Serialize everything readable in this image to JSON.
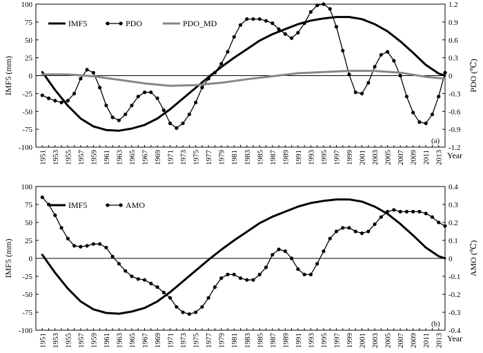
{
  "chart_data": [
    {
      "type": "line",
      "panel_label": "(a)",
      "xlabel": "Year",
      "ylabel": "IMF5 (mm)",
      "y2label": "PDO (℃)",
      "xlim": [
        1950,
        2014
      ],
      "ylim": [
        -100,
        100
      ],
      "y2lim": [
        -1.2,
        1.2
      ],
      "xticks": [
        "1951",
        "1953",
        "1955",
        "1957",
        "1959",
        "1961",
        "1963",
        "1965",
        "1967",
        "1969",
        "1971",
        "1973",
        "1975",
        "1977",
        "1979",
        "1981",
        "1983",
        "1985",
        "1987",
        "1989",
        "1991",
        "1993",
        "1995",
        "1997",
        "1999",
        "2001",
        "2003",
        "2005",
        "2007",
        "2009",
        "2011",
        "2013"
      ],
      "yticks": [
        "-100",
        "-75",
        "-50",
        "-25",
        "0",
        "25",
        "50",
        "75",
        "100"
      ],
      "y2ticks": [
        "-1.2",
        "-0.9",
        "-0.6",
        "-0.3",
        "0",
        "0.3",
        "0.6",
        "0.9",
        "1.2"
      ],
      "legend_position": "top-left",
      "grid": false,
      "series": [
        {
          "name": "IMF5",
          "axis": "left",
          "style": "thick-line",
          "color": "#000000",
          "x": [
            1951,
            1953,
            1955,
            1957,
            1959,
            1961,
            1963,
            1965,
            1967,
            1969,
            1971,
            1973,
            1975,
            1977,
            1979,
            1981,
            1983,
            1985,
            1987,
            1989,
            1991,
            1993,
            1995,
            1997,
            1999,
            2001,
            2003,
            2005,
            2007,
            2009,
            2011,
            2013,
            2014
          ],
          "values": [
            5,
            -20,
            -42,
            -60,
            -71,
            -76,
            -77,
            -74,
            -69,
            -60,
            -47,
            -32,
            -17,
            -2,
            12,
            25,
            37,
            49,
            58,
            65,
            72,
            77,
            80,
            82,
            82,
            79,
            72,
            62,
            48,
            32,
            15,
            3,
            0
          ]
        },
        {
          "name": "PDO",
          "axis": "right",
          "style": "line-markers",
          "color": "#000000",
          "x": [
            1951,
            1952,
            1953,
            1954,
            1955,
            1956,
            1957,
            1958,
            1959,
            1960,
            1961,
            1962,
            1963,
            1964,
            1965,
            1966,
            1967,
            1968,
            1969,
            1970,
            1971,
            1972,
            1973,
            1974,
            1975,
            1976,
            1977,
            1978,
            1979,
            1980,
            1981,
            1982,
            1983,
            1984,
            1985,
            1986,
            1987,
            1988,
            1989,
            1990,
            1991,
            1992,
            1993,
            1994,
            1995,
            1996,
            1997,
            1998,
            1999,
            2000,
            2001,
            2002,
            2003,
            2004,
            2005,
            2006,
            2007,
            2008,
            2009,
            2010,
            2011,
            2012,
            2013,
            2014
          ],
          "values": [
            -0.33,
            -0.38,
            -0.42,
            -0.45,
            -0.42,
            -0.3,
            -0.05,
            0.1,
            0.05,
            -0.2,
            -0.5,
            -0.7,
            -0.75,
            -0.65,
            -0.5,
            -0.35,
            -0.28,
            -0.28,
            -0.38,
            -0.58,
            -0.8,
            -0.88,
            -0.8,
            -0.65,
            -0.45,
            -0.2,
            -0.05,
            0.05,
            0.2,
            0.4,
            0.65,
            0.85,
            0.95,
            0.95,
            0.95,
            0.92,
            0.88,
            0.78,
            0.7,
            0.63,
            0.72,
            0.88,
            1.07,
            1.18,
            1.2,
            1.12,
            0.82,
            0.42,
            0.02,
            -0.28,
            -0.3,
            -0.12,
            0.15,
            0.35,
            0.4,
            0.25,
            0.0,
            -0.35,
            -0.62,
            -0.78,
            -0.8,
            -0.65,
            -0.35,
            0.05
          ]
        },
        {
          "name": "PDO_MD",
          "axis": "right",
          "style": "thick-line",
          "color": "#8c8484",
          "x": [
            1951,
            1955,
            1959,
            1963,
            1967,
            1971,
            1975,
            1979,
            1983,
            1987,
            1991,
            1995,
            1999,
            2003,
            2007,
            2011,
            2014
          ],
          "values": [
            0.02,
            0.02,
            -0.01,
            -0.07,
            -0.13,
            -0.17,
            -0.16,
            -0.12,
            -0.06,
            -0.01,
            0.04,
            0.06,
            0.08,
            0.08,
            0.05,
            -0.02,
            -0.05
          ]
        }
      ]
    },
    {
      "type": "line",
      "panel_label": "(b)",
      "xlabel": "Year",
      "ylabel": "IMF5 (mm)",
      "y2label": "AMO (℃)",
      "xlim": [
        1950,
        2014
      ],
      "ylim": [
        -100,
        100
      ],
      "y2lim": [
        -0.4,
        0.4
      ],
      "xticks": [
        "1951",
        "1953",
        "1955",
        "1957",
        "1959",
        "1961",
        "1963",
        "1965",
        "1967",
        "1969",
        "1971",
        "1973",
        "1975",
        "1977",
        "1979",
        "1981",
        "1983",
        "1985",
        "1987",
        "1989",
        "1991",
        "1993",
        "1995",
        "1997",
        "1999",
        "2001",
        "2003",
        "2005",
        "2007",
        "2009",
        "2011",
        "2013"
      ],
      "yticks": [
        "-100",
        "-75",
        "-50",
        "-25",
        "0",
        "25",
        "50",
        "75",
        "100"
      ],
      "y2ticks": [
        "-0.4",
        "-0.3",
        "-0.2",
        "-0.1",
        "0",
        "0.1",
        "0.2",
        "0.3",
        "0.4"
      ],
      "legend_position": "top-left",
      "grid": false,
      "series": [
        {
          "name": "IMF5",
          "axis": "left",
          "style": "thick-line",
          "color": "#000000",
          "x": [
            1951,
            1953,
            1955,
            1957,
            1959,
            1961,
            1963,
            1965,
            1967,
            1969,
            1971,
            1973,
            1975,
            1977,
            1979,
            1981,
            1983,
            1985,
            1987,
            1989,
            1991,
            1993,
            1995,
            1997,
            1999,
            2001,
            2003,
            2005,
            2007,
            2009,
            2011,
            2013,
            2014
          ],
          "values": [
            5,
            -20,
            -42,
            -60,
            -71,
            -76,
            -77,
            -74,
            -69,
            -60,
            -47,
            -32,
            -17,
            -2,
            12,
            25,
            37,
            49,
            58,
            65,
            72,
            77,
            80,
            82,
            82,
            79,
            72,
            62,
            48,
            32,
            15,
            3,
            0
          ]
        },
        {
          "name": "AMO",
          "axis": "right",
          "style": "line-markers",
          "color": "#000000",
          "x": [
            1951,
            1952,
            1953,
            1954,
            1955,
            1956,
            1957,
            1958,
            1959,
            1960,
            1961,
            1962,
            1963,
            1964,
            1965,
            1966,
            1967,
            1968,
            1969,
            1970,
            1971,
            1972,
            1973,
            1974,
            1975,
            1976,
            1977,
            1978,
            1979,
            1980,
            1981,
            1982,
            1983,
            1984,
            1985,
            1986,
            1987,
            1988,
            1989,
            1990,
            1991,
            1992,
            1993,
            1994,
            1995,
            1996,
            1997,
            1998,
            1999,
            2000,
            2001,
            2002,
            2003,
            2004,
            2005,
            2006,
            2007,
            2008,
            2009,
            2010,
            2011,
            2012,
            2013,
            2014
          ],
          "values": [
            0.34,
            0.3,
            0.24,
            0.17,
            0.11,
            0.07,
            0.065,
            0.07,
            0.08,
            0.08,
            0.06,
            0.01,
            -0.03,
            -0.07,
            -0.1,
            -0.115,
            -0.12,
            -0.14,
            -0.16,
            -0.19,
            -0.22,
            -0.27,
            -0.3,
            -0.31,
            -0.3,
            -0.27,
            -0.22,
            -0.16,
            -0.11,
            -0.09,
            -0.09,
            -0.11,
            -0.12,
            -0.12,
            -0.09,
            -0.05,
            0.02,
            0.05,
            0.04,
            0.0,
            -0.06,
            -0.09,
            -0.09,
            -0.03,
            0.04,
            0.11,
            0.15,
            0.17,
            0.17,
            0.15,
            0.14,
            0.15,
            0.19,
            0.23,
            0.26,
            0.27,
            0.26,
            0.26,
            0.26,
            0.26,
            0.25,
            0.23,
            0.2,
            0.18
          ]
        }
      ]
    }
  ]
}
